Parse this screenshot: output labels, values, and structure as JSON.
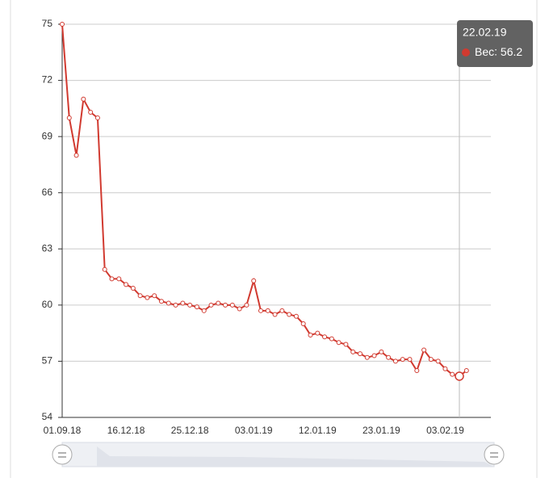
{
  "chart_data": {
    "type": "line",
    "categories": [
      "01.09.18",
      null,
      null,
      null,
      null,
      null,
      null,
      null,
      null,
      "16.12.18",
      null,
      null,
      null,
      null,
      null,
      null,
      null,
      null,
      "25.12.18",
      null,
      null,
      null,
      null,
      null,
      null,
      null,
      null,
      "03.01.19",
      null,
      null,
      null,
      null,
      null,
      null,
      null,
      null,
      "12.01.19",
      null,
      null,
      null,
      null,
      null,
      null,
      null,
      null,
      "23.01.19",
      null,
      null,
      null,
      null,
      null,
      null,
      null,
      null,
      "03.02.19",
      null,
      "22.02.19",
      null
    ],
    "series": [
      {
        "name": "Вес",
        "color": "#d13a30",
        "values": [
          75,
          70,
          68,
          71,
          70.3,
          70,
          61.9,
          61.4,
          61.4,
          61.1,
          60.9,
          60.5,
          60.4,
          60.5,
          60.2,
          60.1,
          60.0,
          60.1,
          60.0,
          59.9,
          59.7,
          60.0,
          60.1,
          60.0,
          60.0,
          59.8,
          60.0,
          61.3,
          59.7,
          59.7,
          59.5,
          59.7,
          59.5,
          59.4,
          59.0,
          58.4,
          58.5,
          58.3,
          58.2,
          58.0,
          57.9,
          57.5,
          57.4,
          57.2,
          57.3,
          57.5,
          57.2,
          57.0,
          57.1,
          57.1,
          56.5,
          57.6,
          57.1,
          57.0,
          56.6,
          56.3,
          56.2,
          56.5
        ]
      }
    ],
    "ylim": [
      54,
      75
    ],
    "yticks": [
      54,
      57,
      60,
      63,
      66,
      69,
      72,
      75
    ],
    "grid": true,
    "tooltip_index": 56
  }
}
